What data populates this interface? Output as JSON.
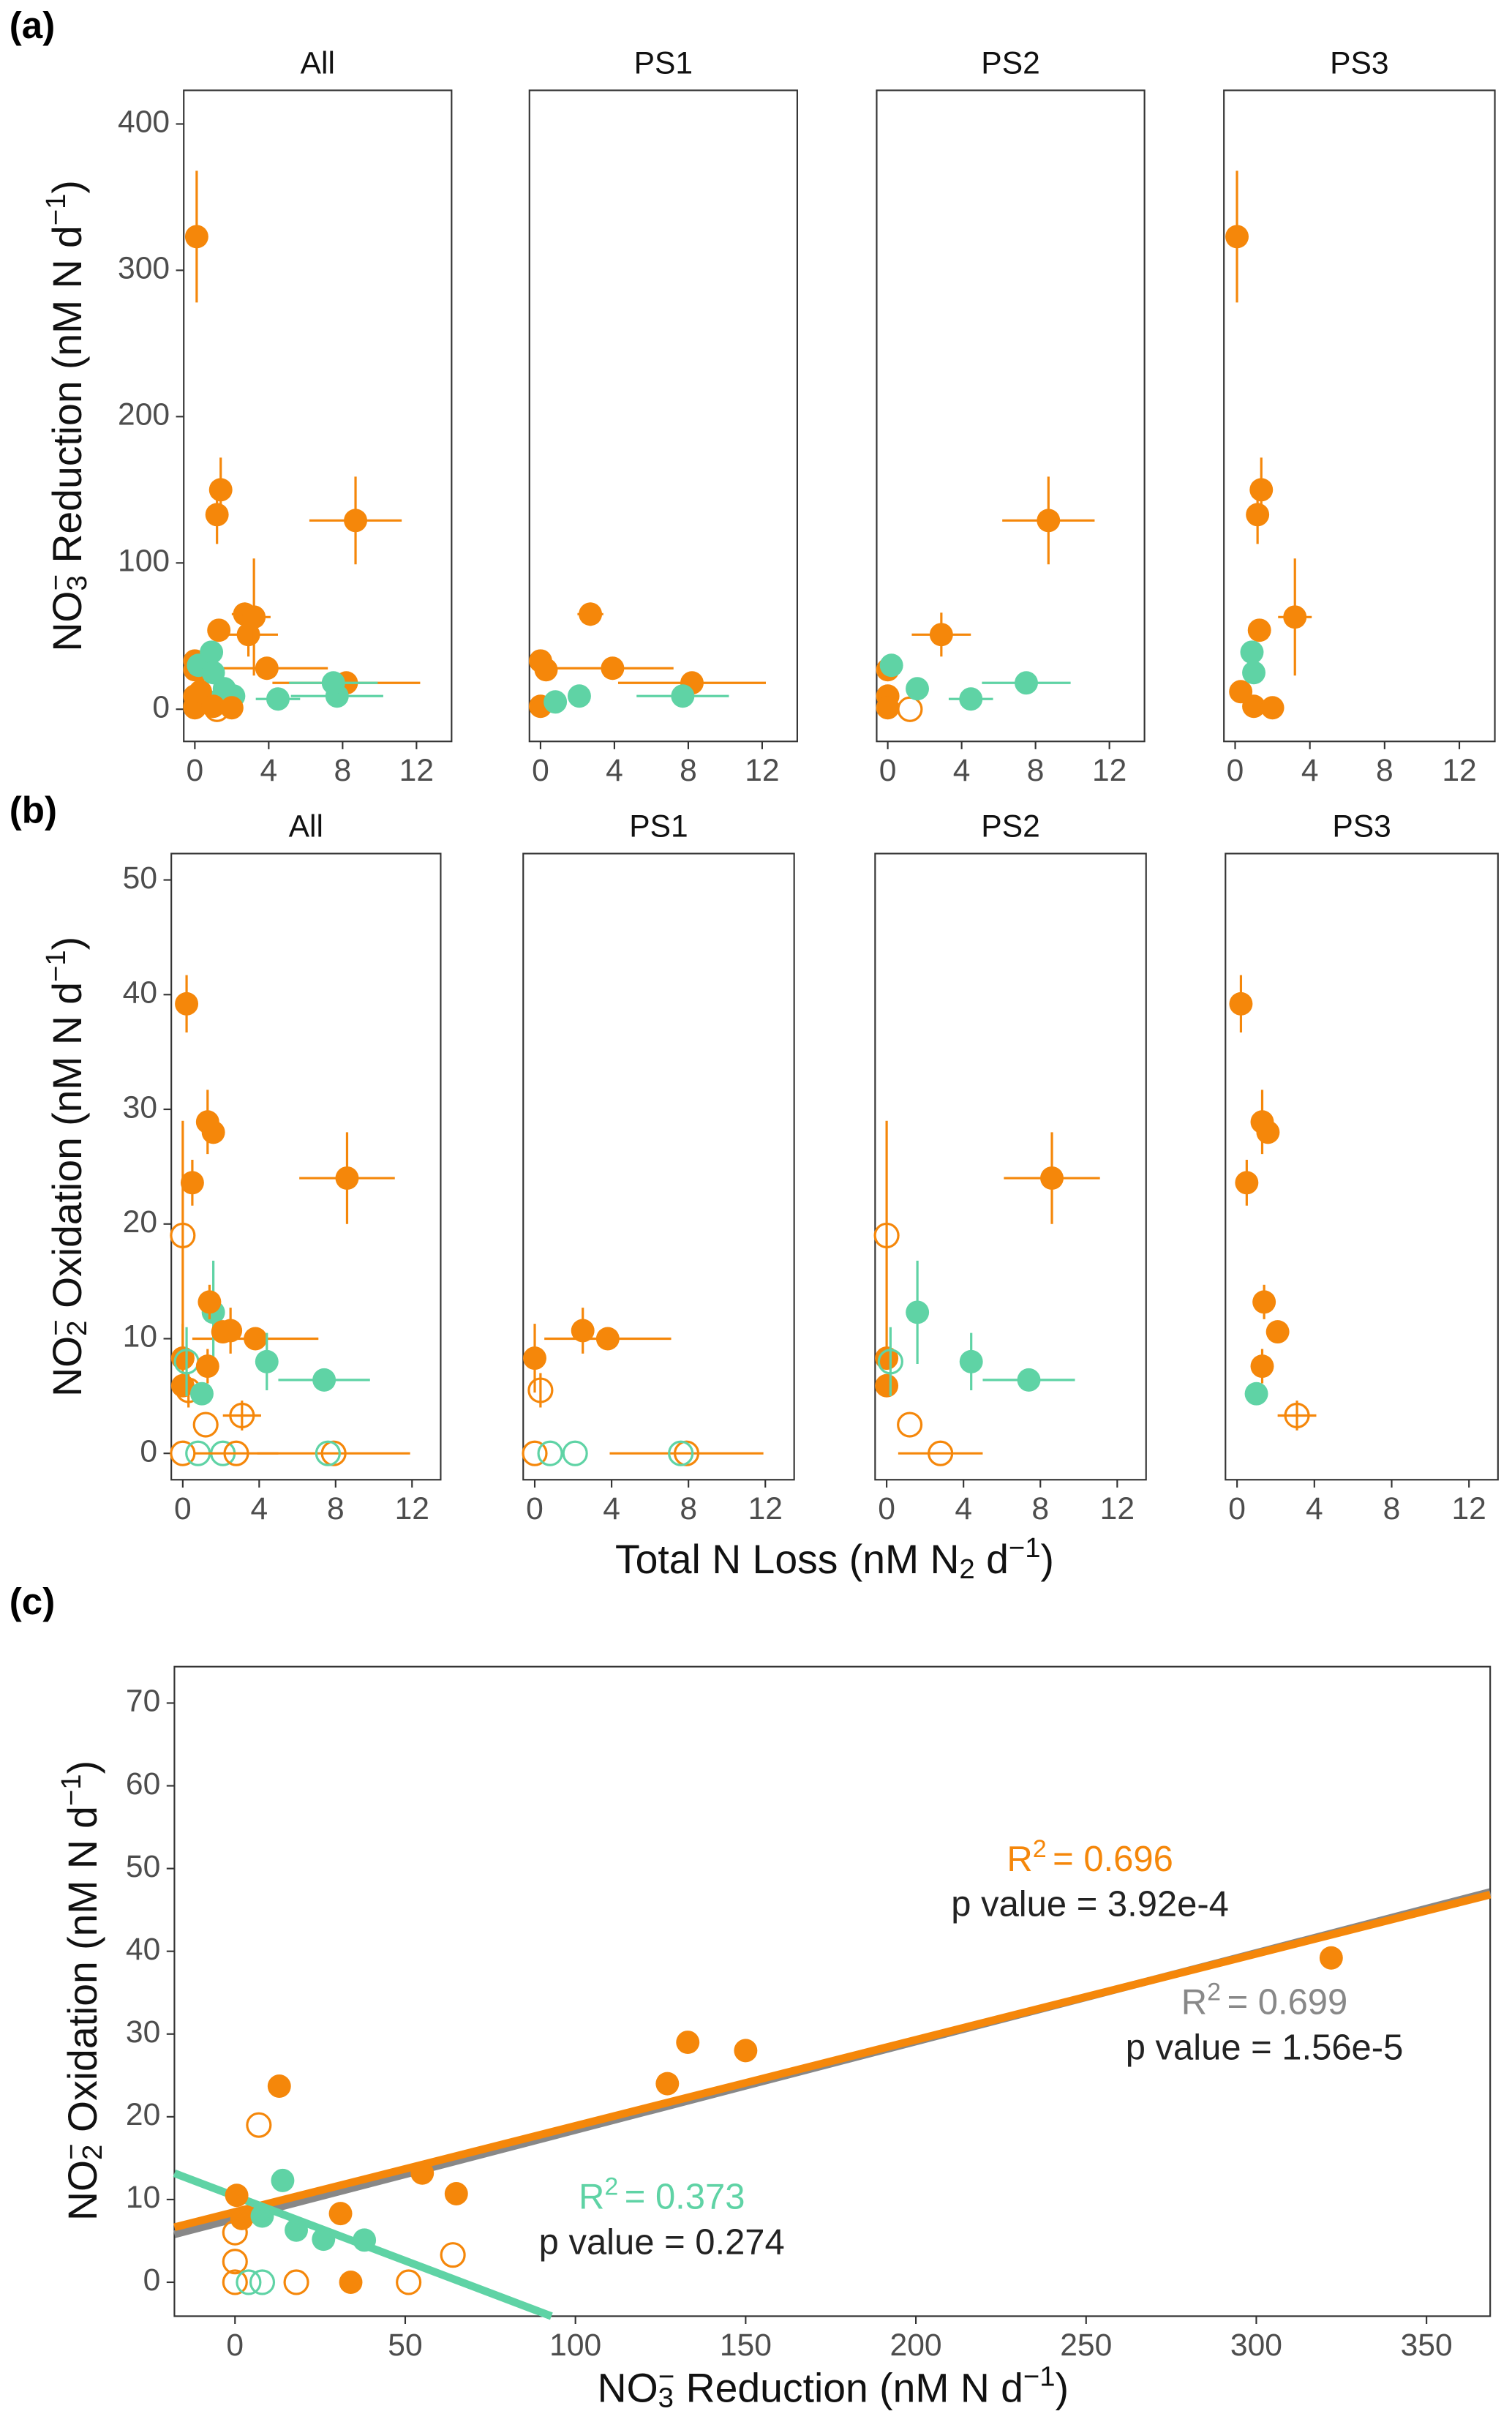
{
  "chart_data": [
    {
      "type": "scatter",
      "panel_label": "(a)",
      "all_title": "All",
      "ylabel_parts": [
        "NO",
        "3",
        "−",
        " Reduction (nM N d",
        "−1",
        ")"
      ],
      "xlim": [
        -0.6,
        13.9
      ],
      "xticks": [
        0,
        4,
        8,
        12
      ],
      "ylim": [
        -22,
        423
      ],
      "yticks": [
        0,
        100,
        200,
        300,
        400
      ],
      "facets": [
        {
          "title": "PS1",
          "series": [
            {
              "color": "#f5870a",
              "filled": true,
              "x": [
                0.0,
                0.3,
                0.0,
                2.7,
                3.9,
                8.2
              ],
              "values": [
                33,
                27,
                2,
                65,
                28,
                18
              ],
              "xerr": [
                null,
                null,
                null,
                0.7,
                3.3,
                4.0
              ],
              "yerr": [
                null,
                null,
                null,
                8,
                null,
                null
              ]
            },
            {
              "color": "#5fd3a5",
              "filled": true,
              "x": [
                0.8,
                2.1,
                7.7
              ],
              "values": [
                5,
                9,
                9
              ],
              "xerr": [
                null,
                null,
                2.5
              ]
            }
          ]
        },
        {
          "title": "PS2",
          "series": [
            {
              "color": "#f5870a",
              "filled": true,
              "x": [
                0.0,
                0.0,
                0.0,
                2.9,
                8.7
              ],
              "values": [
                27,
                9,
                1,
                51,
                129
              ],
              "xerr": [
                null,
                null,
                null,
                1.6,
                2.5
              ],
              "yerr": [
                null,
                null,
                null,
                15,
                30
              ]
            },
            {
              "color": "#f5870a",
              "filled": false,
              "x": [
                1.2
              ],
              "values": [
                0
              ]
            },
            {
              "color": "#5fd3a5",
              "filled": true,
              "x": [
                0.2,
                1.6,
                4.5,
                7.5
              ],
              "values": [
                30,
                14,
                7,
                18
              ],
              "xerr": [
                null,
                null,
                1.2,
                2.4
              ]
            }
          ]
        },
        {
          "title": "PS3",
          "series": [
            {
              "color": "#f5870a",
              "filled": true,
              "x": [
                0.1,
                1.4,
                1.2,
                1.3,
                3.2,
                0.3,
                1.0,
                2.0
              ],
              "values": [
                323,
                150,
                133,
                54,
                63,
                12,
                2,
                1
              ],
              "xerr": [
                null,
                null,
                null,
                null,
                0.9,
                null,
                null,
                null
              ],
              "yerr": [
                45,
                22,
                20,
                null,
                40,
                null,
                null,
                null
              ]
            },
            {
              "color": "#5fd3a5",
              "filled": true,
              "x": [
                0.9,
                1.0
              ],
              "values": [
                39,
                25
              ]
            }
          ]
        }
      ]
    },
    {
      "type": "scatter",
      "panel_label": "(b)",
      "all_title": "All",
      "ylabel_parts": [
        "NO",
        "2",
        "−",
        " Oxidation (nM N d",
        "−1",
        ")"
      ],
      "xlabel_parts": [
        "Total N Loss (nM N",
        "2",
        " d",
        "−1",
        ")"
      ],
      "xlim": [
        -0.6,
        13.5
      ],
      "xticks": [
        0,
        4,
        8,
        12
      ],
      "ylim": [
        -2.3,
        52.3
      ],
      "yticks": [
        0,
        10,
        20,
        30,
        40,
        50
      ],
      "facets": [
        {
          "title": "PS1",
          "series": [
            {
              "color": "#f5870a",
              "filled": true,
              "x": [
                0,
                2.5,
                3.8
              ],
              "values": [
                8.3,
                10.7,
                10
              ],
              "xerr": [
                null,
                null,
                3.3
              ],
              "yerr": [
                3,
                2,
                null
              ]
            },
            {
              "color": "#f5870a",
              "filled": false,
              "x": [
                0.3,
                0,
                7.9
              ],
              "values": [
                5.5,
                0,
                0
              ],
              "xerr": [
                null,
                null,
                4
              ],
              "yerr": [
                1.5,
                null,
                null
              ]
            },
            {
              "color": "#5fd3a5",
              "filled": false,
              "x": [
                0.8,
                2.1,
                7.6
              ],
              "values": [
                0,
                0,
                0
              ]
            }
          ]
        },
        {
          "title": "PS2",
          "series": [
            {
              "color": "#f5870a",
              "filled": true,
              "x": [
                0,
                0,
                8.6
              ],
              "values": [
                5.9,
                8.3,
                24
              ],
              "xerr": [
                null,
                null,
                2.5
              ],
              "yerr": [
                null,
                null,
                4
              ]
            },
            {
              "color": "#f5870a",
              "filled": false,
              "x": [
                0,
                1.2,
                2.8
              ],
              "values": [
                19,
                2.5,
                0
              ],
              "xerr": [
                null,
                null,
                2.2
              ],
              "yerr": [
                10,
                null,
                null
              ]
            },
            {
              "color": "#5fd3a5",
              "filled": true,
              "x": [
                1.6,
                4.4,
                7.4
              ],
              "values": [
                12.3,
                8,
                6.4
              ],
              "xerr": [
                null,
                null,
                2.4
              ],
              "yerr": [
                4.5,
                2.5,
                null
              ]
            },
            {
              "color": "#5fd3a5",
              "filled": false,
              "x": [
                0.2
              ],
              "values": [
                8
              ],
              "yerr": [
                3
              ]
            }
          ]
        },
        {
          "title": "PS3",
          "series": [
            {
              "color": "#f5870a",
              "filled": true,
              "x": [
                0.2,
                1.3,
                1.6,
                0.5,
                1.4,
                1.3,
                2.1
              ],
              "values": [
                39.2,
                28.9,
                28,
                23.6,
                13.2,
                7.6,
                10.6
              ],
              "yerr": [
                2.5,
                2.8,
                null,
                2,
                1.5,
                1.5,
                1
              ]
            },
            {
              "color": "#f5870a",
              "filled": false,
              "x": [
                3.1
              ],
              "values": [
                3.3
              ],
              "xerr": [
                1
              ],
              "yerr": [
                1.3
              ]
            },
            {
              "color": "#5fd3a5",
              "filled": true,
              "x": [
                1
              ],
              "values": [
                5.2
              ],
              "yerr": [
                1
              ]
            }
          ]
        }
      ]
    },
    {
      "type": "scatter-fit",
      "panel_label": "(c)",
      "ylabel_parts": [
        "NO",
        "2",
        "−",
        " Oxidation (nM N d",
        "−1",
        ")"
      ],
      "xlabel_parts": [
        "NO",
        "3",
        "−",
        " Reduction (nM N d",
        "−1",
        ")"
      ],
      "xlim": [
        -17.8,
        368.7
      ],
      "xticks": [
        0,
        50,
        100,
        150,
        200,
        250,
        300,
        350
      ],
      "ylim": [
        -4.1,
        74.4
      ],
      "yticks": [
        0,
        10,
        20,
        30,
        40,
        50,
        60,
        70
      ],
      "series": [
        {
          "color": "#f5870a",
          "filled": true,
          "x": [
            322,
            133,
            150,
            127,
            13,
            55,
            0.5,
            65,
            31,
            34,
            2
          ],
          "values": [
            39.2,
            29,
            28,
            24,
            23.7,
            13.2,
            10.5,
            10.7,
            8.3,
            0,
            7.7
          ]
        },
        {
          "color": "#5fd3a5",
          "filled": true,
          "x": [
            14,
            18,
            26,
            38,
            8
          ],
          "values": [
            12.3,
            6.3,
            5.2,
            5.1,
            8
          ]
        },
        {
          "color": "#f5870a",
          "filled": false,
          "x": [
            7,
            0,
            0,
            0,
            18,
            51,
            64
          ],
          "values": [
            19,
            6,
            2.5,
            0,
            0,
            0,
            3.3
          ]
        },
        {
          "color": "#5fd3a5",
          "filled": false,
          "x": [
            4,
            8
          ],
          "values": [
            0,
            0
          ]
        }
      ],
      "fits": [
        {
          "color": "#888888",
          "slope": 0.107,
          "intercept": 7.7,
          "r": "R",
          "sup": "2",
          "r2": "= 0.699",
          "p": "p value = 1.56e-5"
        },
        {
          "color": "#f5870a",
          "slope": 0.104,
          "intercept": 8.5,
          "r": "R",
          "sup": "2",
          "r2": "= 0.696",
          "p": "p value = 3.92e-4"
        },
        {
          "color": "#5fd3a5",
          "slope": -0.156,
          "intercept": 10.4,
          "r": "R",
          "sup": "2",
          "r2": "= 0.373",
          "p": "p value = 0.274"
        }
      ]
    }
  ]
}
